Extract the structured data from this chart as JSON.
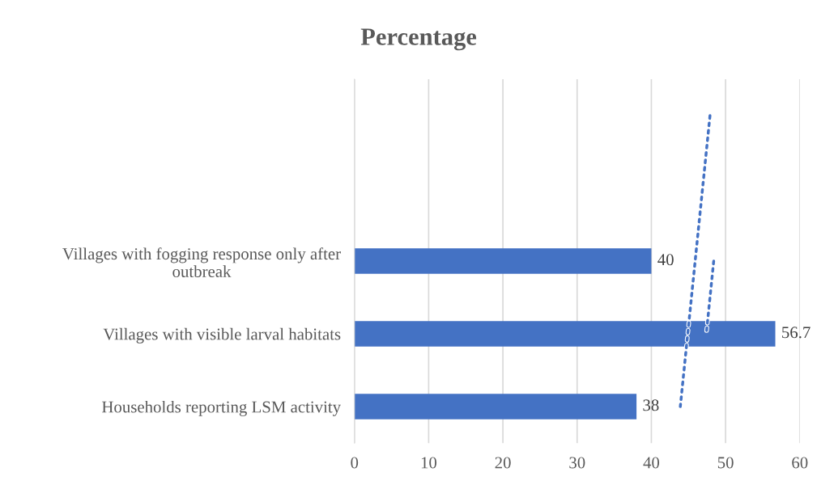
{
  "chart_data": {
    "type": "bar",
    "orientation": "horizontal",
    "title": "Percentage",
    "categories": [
      null,
      null,
      "Villages with fogging response only after outbreak",
      "Villages with visible larval habitats",
      "Households reporting LSM activity"
    ],
    "series": [
      {
        "color": "#4472c4",
        "values": [
          null,
          null,
          40,
          56.7,
          38
        ],
        "value_labels": [
          null,
          null,
          "40",
          "56.7",
          "38"
        ]
      },
      {
        "type": "line",
        "color": "#4472c4",
        "line_style": "dotted",
        "values": [
          47.9,
          46.9,
          45.9,
          44.9,
          43.9
        ]
      },
      {
        "type": "line",
        "color": "#4472c4",
        "line_style": "dotted",
        "values": [
          null,
          null,
          48.4,
          47.4,
          null
        ]
      }
    ],
    "xlim": [
      0,
      60
    ],
    "xticks": [
      0,
      10,
      20,
      30,
      40,
      50,
      60
    ],
    "grid": "x",
    "legend": false
  }
}
